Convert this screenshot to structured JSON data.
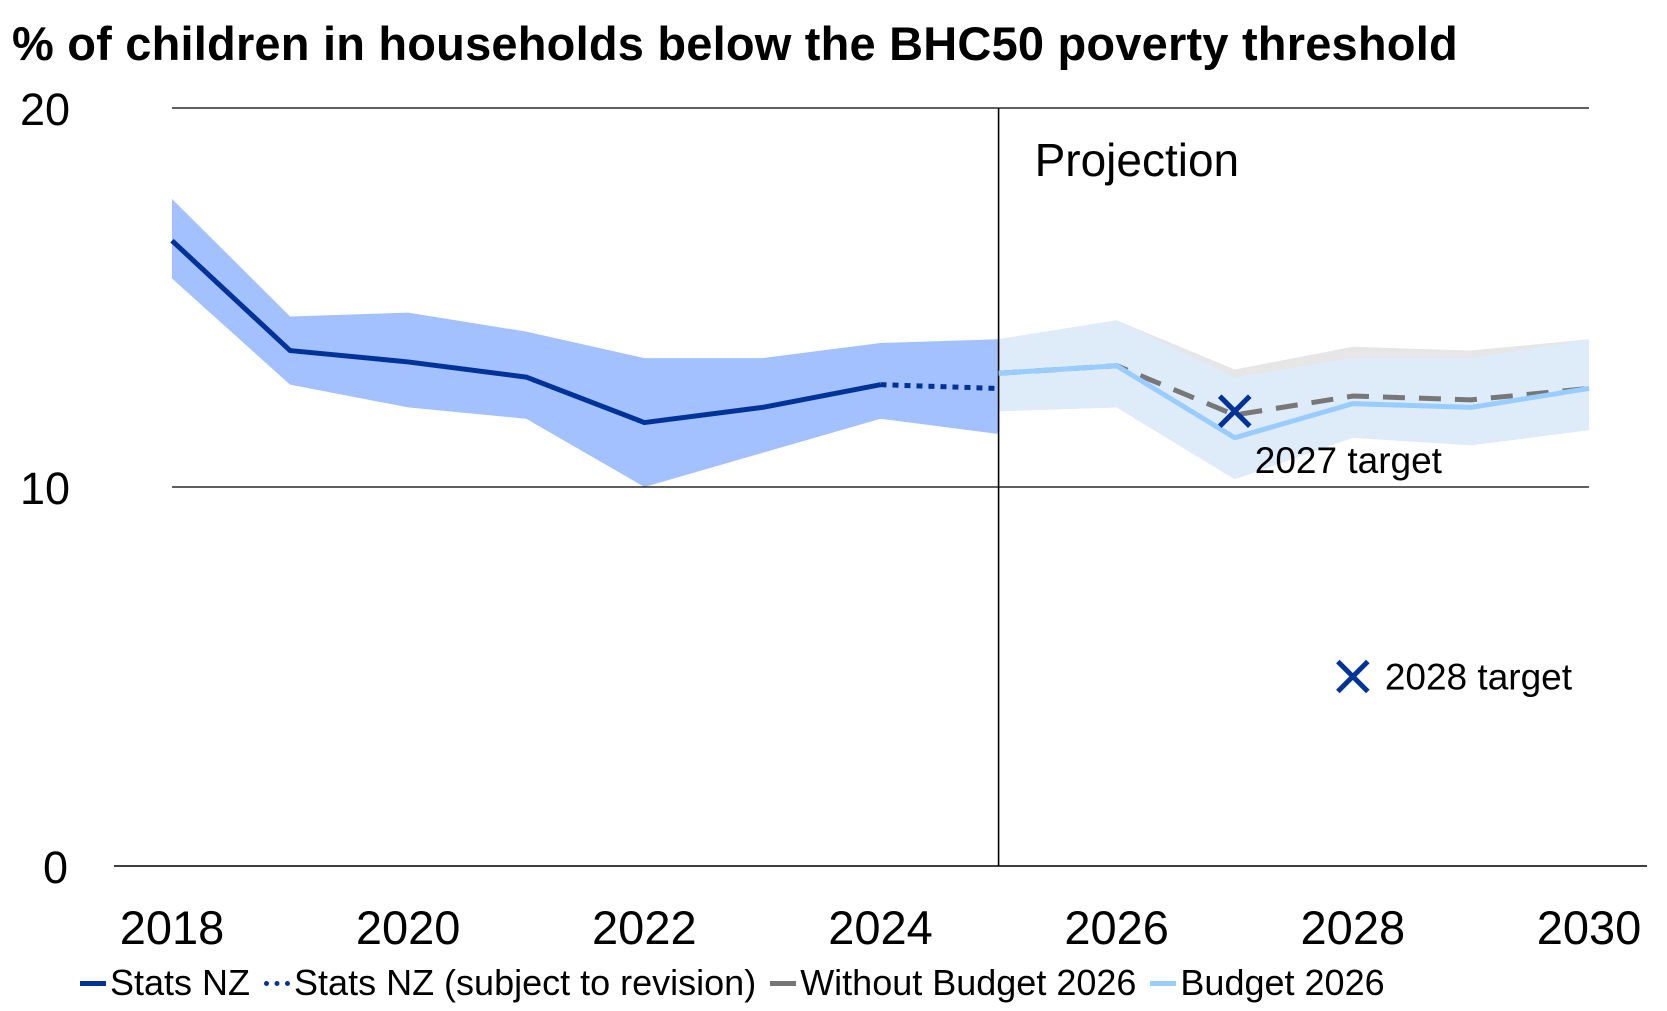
{
  "chart_data": {
    "type": "line",
    "title": "% of children in households below the BHC50 poverty threshold",
    "xlabel": "",
    "ylabel": "",
    "xlim": [
      2018,
      2030
    ],
    "ylim": [
      0,
      20
    ],
    "x_ticks": [
      2018,
      2020,
      2022,
      2024,
      2026,
      2028,
      2030
    ],
    "y_ticks": [
      0,
      10,
      20
    ],
    "gridlines": [
      10,
      20
    ],
    "projection_start": 2025,
    "projection_label": "Projection",
    "legend_position": "bottom",
    "series": [
      {
        "name": "Stats NZ",
        "style": "solid",
        "color": "#003399",
        "x": [
          2018,
          2019,
          2020,
          2021,
          2022,
          2023,
          2024
        ],
        "y": [
          16.5,
          13.6,
          13.3,
          12.9,
          11.7,
          12.1,
          12.7
        ]
      },
      {
        "name": "Stats NZ (subject to revision)",
        "style": "dotted",
        "color": "#003399",
        "x": [
          2024,
          2025
        ],
        "y": [
          12.7,
          12.6
        ]
      },
      {
        "name": "Without Budget 2026",
        "style": "dashed",
        "color": "#777777",
        "x": [
          2025,
          2026,
          2027,
          2028,
          2029,
          2030
        ],
        "y": [
          13.0,
          13.2,
          11.9,
          12.4,
          12.3,
          12.6
        ]
      },
      {
        "name": "Budget 2026",
        "style": "solid",
        "color": "#99ccff",
        "x": [
          2025,
          2026,
          2027,
          2028,
          2029,
          2030
        ],
        "y": [
          13.0,
          13.2,
          11.3,
          12.2,
          12.1,
          12.6
        ]
      }
    ],
    "bands": [
      {
        "for": "Stats NZ",
        "color": "#a3c0ff",
        "x": [
          2018,
          2019,
          2020,
          2021,
          2022,
          2023,
          2024,
          2025
        ],
        "lower": [
          15.5,
          12.7,
          12.1,
          11.8,
          10.0,
          10.9,
          11.8,
          11.4
        ],
        "upper": [
          17.6,
          14.5,
          14.6,
          14.1,
          13.4,
          13.4,
          13.8,
          13.9
        ]
      },
      {
        "for": "Without Budget 2026",
        "color": "#e6e6e6",
        "x": [
          2025,
          2026,
          2027,
          2028,
          2029,
          2030
        ],
        "lower": [
          12.0,
          12.1,
          12.4,
          11.3,
          11.1,
          11.5
        ],
        "upper": [
          13.9,
          14.4,
          13.1,
          13.7,
          13.6,
          13.9
        ]
      },
      {
        "for": "Budget 2026",
        "color": "#deebf8",
        "x": [
          2025,
          2026,
          2027,
          2028,
          2029,
          2030
        ],
        "lower": [
          12.0,
          12.1,
          10.2,
          11.3,
          11.1,
          11.5
        ],
        "upper": [
          13.9,
          14.4,
          12.9,
          13.4,
          13.4,
          13.9
        ]
      }
    ],
    "targets": [
      {
        "label": "2027 target",
        "x": 2027,
        "y": 12.0,
        "color": "#003399",
        "marker": "x"
      },
      {
        "label": "2028 target",
        "x": 2028,
        "y": 5.0,
        "color": "#003399",
        "marker": "x"
      }
    ]
  }
}
